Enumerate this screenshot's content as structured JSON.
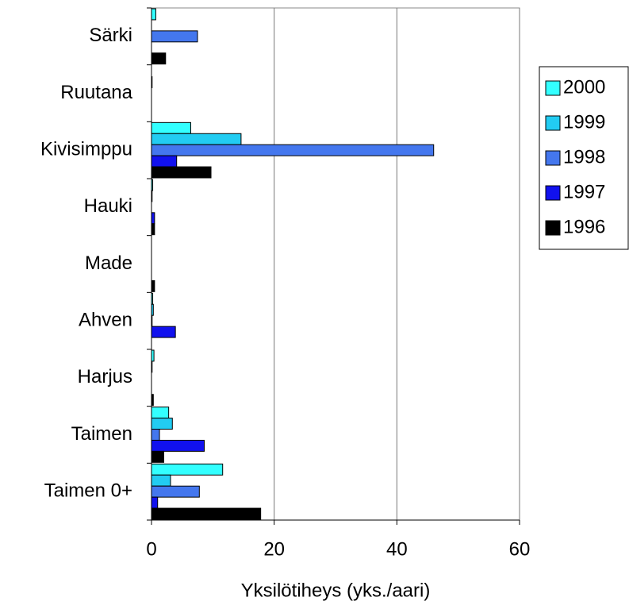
{
  "chart_data": {
    "type": "hbar",
    "categories": [
      "Särki",
      "Ruutana",
      "Kivisimppu",
      "Hauki",
      "Made",
      "Ahven",
      "Harjus",
      "Taimen",
      "Taimen 0+"
    ],
    "series": [
      {
        "name": "2000",
        "color": "#33ffff",
        "values": [
          0.7,
          0,
          6.4,
          0.2,
          0,
          0.2,
          0.4,
          2.8,
          11.6
        ]
      },
      {
        "name": "1999",
        "color": "#22ccf2",
        "values": [
          0,
          0.1,
          14.6,
          0.1,
          0,
          0.3,
          0.1,
          3.4,
          3.1
        ]
      },
      {
        "name": "1998",
        "color": "#4477ee",
        "values": [
          7.5,
          0,
          46,
          0,
          0,
          0.1,
          0,
          1.3,
          7.8
        ]
      },
      {
        "name": "1997",
        "color": "#1111ee",
        "values": [
          0,
          0,
          4.1,
          0.5,
          0,
          3.9,
          0,
          8.6,
          1.0
        ]
      },
      {
        "name": "1996",
        "color": "#000000",
        "values": [
          2.3,
          0,
          9.7,
          0.5,
          0.5,
          0,
          0.3,
          2.0,
          17.8
        ]
      }
    ],
    "xlabel": "Yksilötiheys (yks./aari)",
    "xlim": [
      0,
      60
    ],
    "xticks": [
      0,
      20,
      40,
      60
    ],
    "grid": true,
    "legend": "right"
  }
}
